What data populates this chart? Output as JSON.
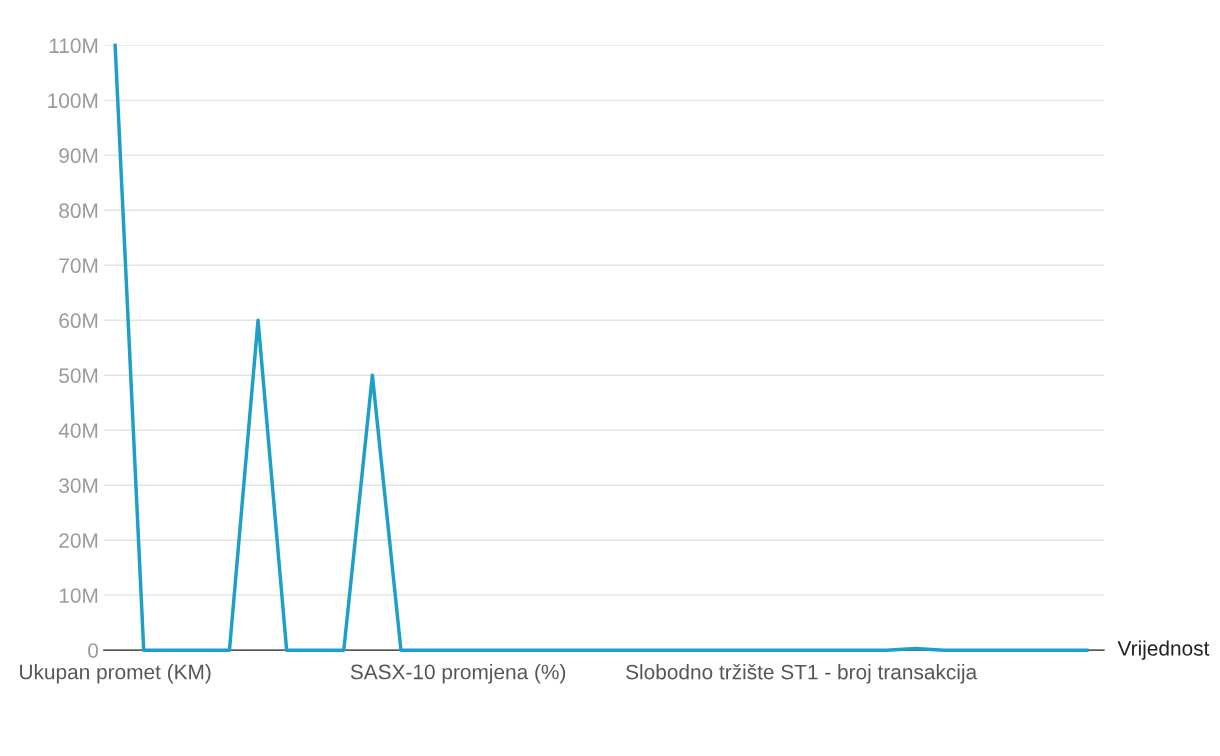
{
  "chart_data": {
    "type": "line",
    "categories": [
      "Ukupan promet (KM)",
      null,
      null,
      null,
      null,
      null,
      null,
      null,
      null,
      null,
      null,
      null,
      "SASX-10 promjena (%)",
      null,
      null,
      null,
      null,
      null,
      null,
      null,
      null,
      null,
      null,
      null,
      "Slobodno tržište ST1 - broj transakcija",
      null,
      null,
      null,
      null,
      null,
      null,
      null,
      null,
      null,
      null
    ],
    "series": [
      {
        "name": "Vrijednost",
        "color": "#1d9fc9",
        "values": [
          110000000,
          0,
          0,
          0,
          0,
          60000000,
          0,
          0,
          0,
          50000000,
          0,
          0,
          0,
          0,
          0,
          0,
          0,
          0,
          0,
          0,
          0,
          0,
          0,
          0,
          0,
          0,
          0,
          0,
          300000,
          0,
          0,
          0,
          0,
          0,
          0
        ]
      }
    ],
    "ylim": [
      0,
      110000000
    ],
    "yticks": [
      {
        "value": 0,
        "label": "0"
      },
      {
        "value": 10000000,
        "label": "10M"
      },
      {
        "value": 20000000,
        "label": "20M"
      },
      {
        "value": 30000000,
        "label": "30M"
      },
      {
        "value": 40000000,
        "label": "40M"
      },
      {
        "value": 50000000,
        "label": "50M"
      },
      {
        "value": 60000000,
        "label": "60M"
      },
      {
        "value": 70000000,
        "label": "70M"
      },
      {
        "value": 80000000,
        "label": "80M"
      },
      {
        "value": 90000000,
        "label": "90M"
      },
      {
        "value": 100000000,
        "label": "100M"
      },
      {
        "value": 110000000,
        "label": "110M"
      }
    ],
    "grid": "y",
    "legend": false,
    "marker": "none",
    "line_style": "solid"
  }
}
